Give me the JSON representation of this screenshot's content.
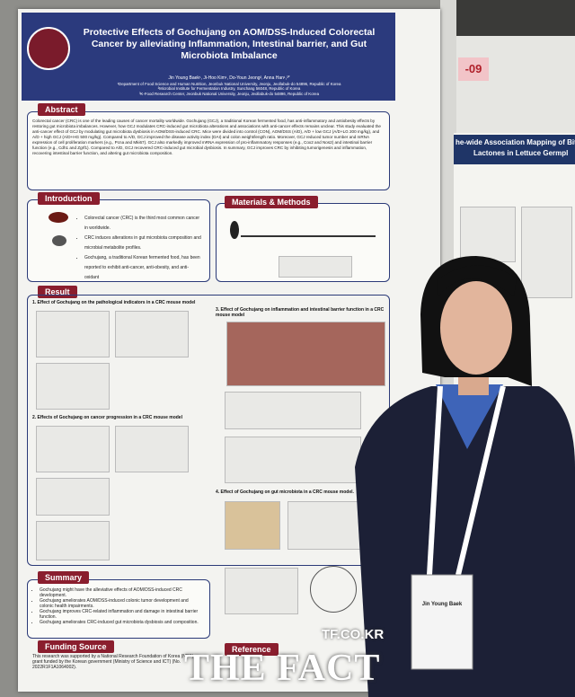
{
  "poster": {
    "title": "Protective Effects of Gochujang on AOM/DSS-Induced Colorectal Cancer by alleviating Inflammation, Intestinal barrier, and Gut Microbiota Imbalance",
    "authors": "Jin Young Baek¹, Ji-Hoo Kim¹, Do-Youn Jeong², Anna Han¹,³*",
    "affiliations": [
      "¹Department of Food Science and Human Nutrition, Jeonbuk National University, Jeonju, Jeollabuk-do 54896, Republic of Korea",
      "²Microbial Institute for Fermentation Industry, Sunchang 56048, Republic of Korea",
      "³K-Food Research Center, Jeonbuk National University, Jeonju, Jeollabuk-do 54896, Republic of Korea"
    ],
    "abstract": {
      "heading": "Abstract",
      "text": "Colorectal cancer (CRC) is one of the leading causes of cancer mortality worldwide. Gochujang (GCJ), a traditional Korean fermented food, has anti-inflammatory and antiobesity effects by restoring gut microbiota imbalances. However, how GCJ modulates CRC-induced gut microbiota alterations and associations with anti-cancer effects remains unclear. This study evaluated the anti-cancer effect of GCJ by modulating gut microbiota dysbiosis in AOM/DSS-induced CRC. Mice were divided into control (CON), AOM/DSS (A/D), A/D + low GCJ (A/D+LG 200 mg/kg), and A/D + high GCJ (A/D+HG 500 mg/kg). Compared to A/D, GCJ improved the disease activity index (DAI) and colon weight/length ratio. Moreover, GCJ reduced tumor number and mRNA expression of cell proliferation markers (e.g., Pcna and Mki67). GCJ also markedly improved mRNA expression of pro-inflammatory responses (e.g., Cox2 and Nos2) and intestinal barrier function (e.g., Cdh1 and Zgrf1). Compared to A/D, GCJ recovered CRC-induced gut microbial dysbiosis. In summary, GCJ improves CRC by inhibiting tumorigenesis and inflammation, recovering intestinal barrier function, and altering gut microbiota composition."
    },
    "introduction": {
      "heading": "Introduction",
      "bullets": [
        "Colorectal cancer (CRC) is the third most common cancer in worldwide.",
        "CRC induces alterations in gut microbiota composition and microbial metabolite profiles.",
        "Gochujang, a traditional Korean fermented food, has been reported to exhibit anti-cancer, anti-obesity, and anti-oxidant"
      ]
    },
    "methods": {
      "heading": "Materials & Methods"
    },
    "result": {
      "heading": "Result",
      "subsections": [
        "1. Effect of Gochujang on the pathological indicators in a CRC mouse model",
        "2. Effects of Gochujang on cancer progression in a CRC mouse model",
        "3. Effect of Gochujang on inflammation and intestinal barrier function in a CRC mouse model",
        "4. Effect of Gochujang on gut microbiota in a CRC mouse model."
      ]
    },
    "summary": {
      "heading": "Summary",
      "bullets": [
        "Gochujang might have the alleviative effects of AOM/DSS-induced CRC development.",
        "Gochujang ameliorates AOM/DSS-induced colonic tumor development and colonic health impairments.",
        "Gochujang improves CRC-related inflammation and damage in intestinal barrier function.",
        "Gochujang ameliorates CRC-induced gut microbiota dysbiosis and composition."
      ]
    },
    "funding": {
      "heading": "Funding Source",
      "text": "This research was supported by a National Research Foundation of Korea (NRF) grant funded by the Korean government (Ministry of Science and ICT) (No. 2022R1F1A1064002)."
    },
    "reference": {
      "heading": "Reference"
    }
  },
  "neighbor": {
    "board_number": "-09",
    "title_lines": [
      "he-wide Association Mapping of Bit",
      "Lactones in Lettuce Germpl"
    ]
  },
  "badge": {
    "name": "Jin Young Baek"
  },
  "watermark": {
    "site": "TF.CO.KR",
    "brand": "THE FACT"
  }
}
